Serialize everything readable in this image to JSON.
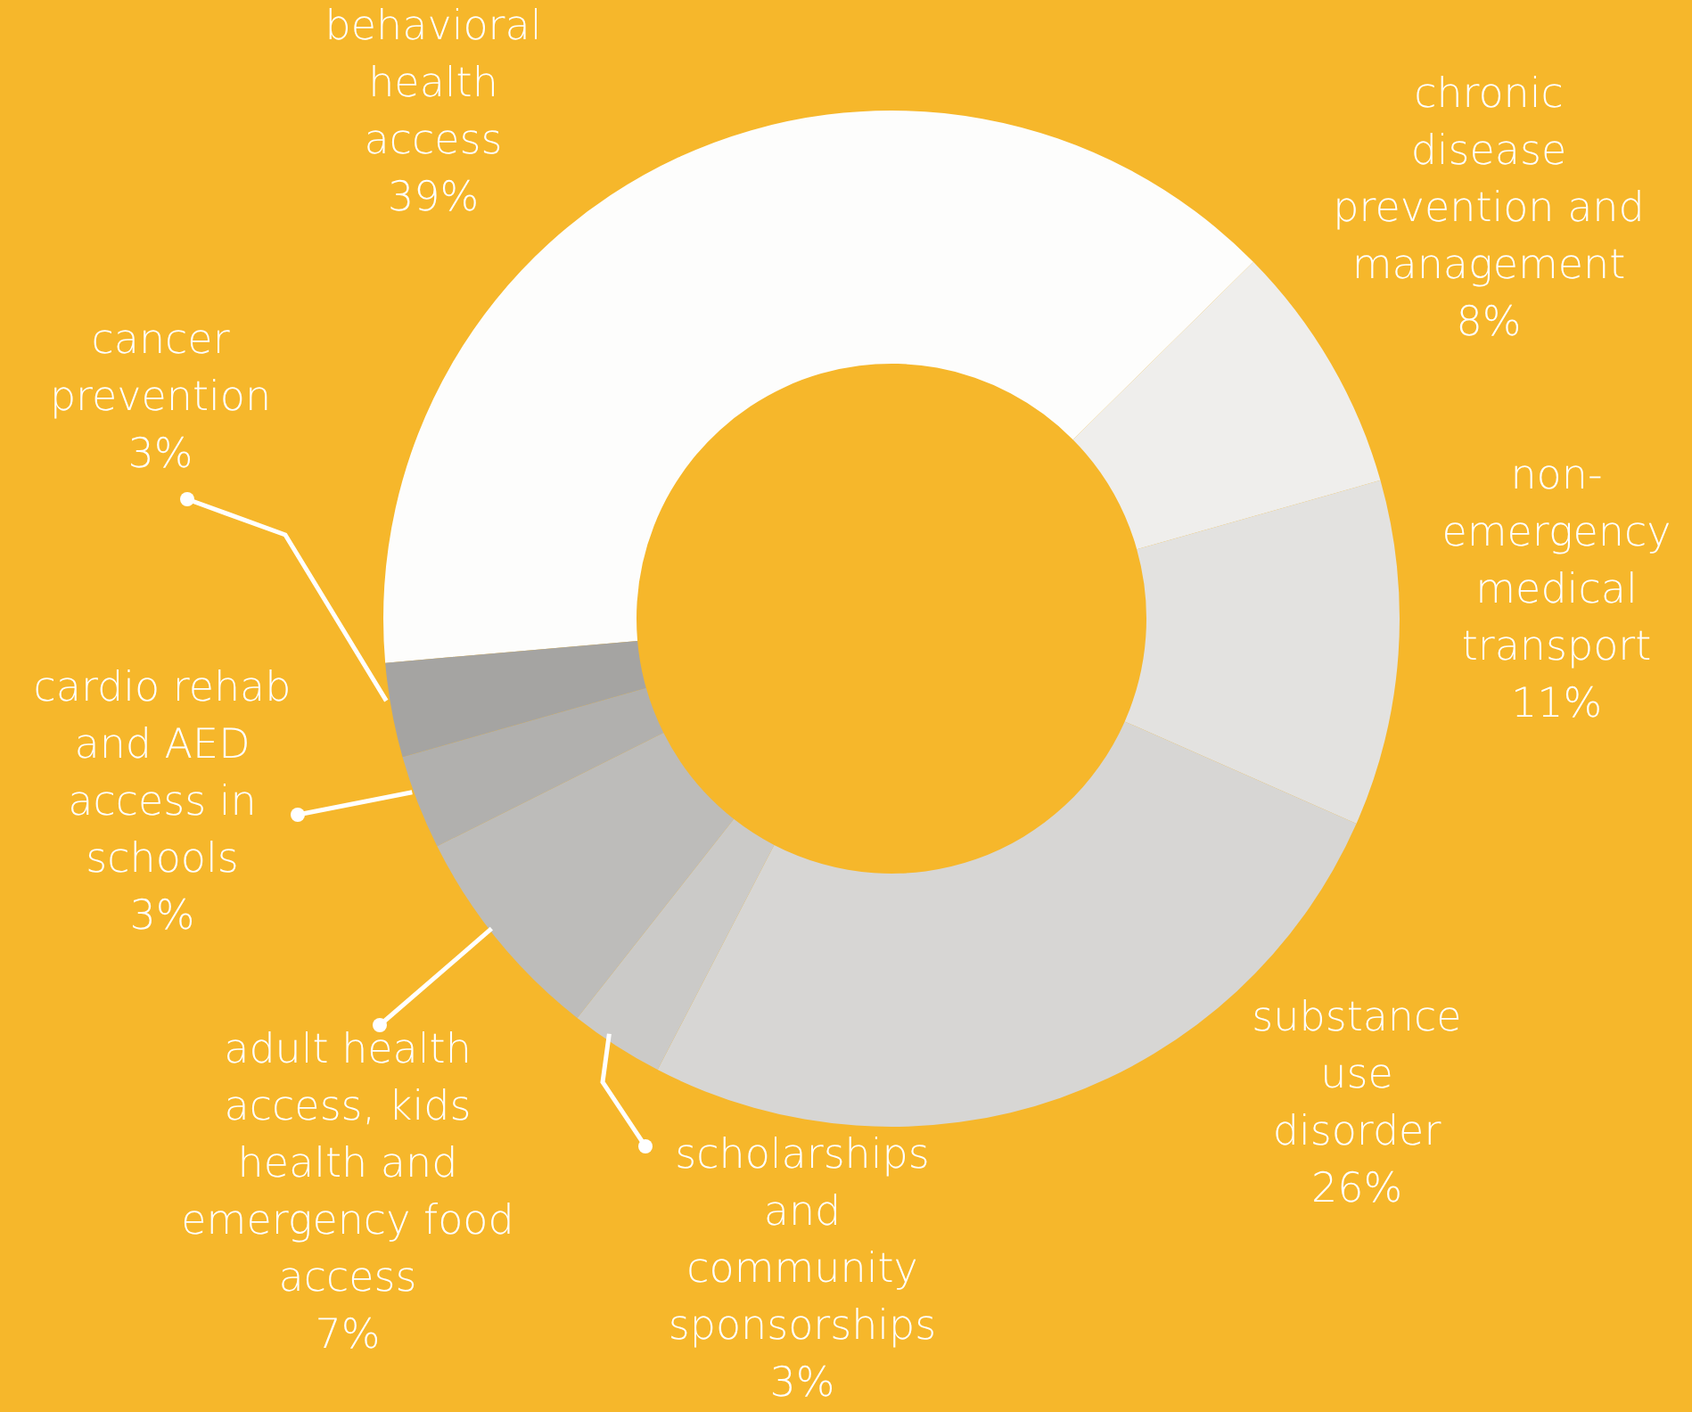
{
  "chart_data": {
    "type": "donut",
    "categories": [
      "behavioral health access",
      "chronic disease prevention and management",
      "non-emergency medical transport",
      "substance use disorder",
      "scholarships and community sponsorships",
      "adult health access, kids health and emergency food access",
      "cardio rehab and AED access in schools",
      "cancer prevention"
    ],
    "values": [
      39,
      8,
      11,
      26,
      3,
      7,
      3,
      3
    ],
    "value_labels": [
      "39%",
      "8%",
      "11%",
      "26%",
      "3%",
      "7%",
      "3%",
      "3%"
    ],
    "colors": [
      "#fdfdfc",
      "#efeeec",
      "#e3e2e0",
      "#d7d6d4",
      "#cbcac8",
      "#bdbcba",
      "#b1b0ae",
      "#a5a4a2"
    ]
  }
}
